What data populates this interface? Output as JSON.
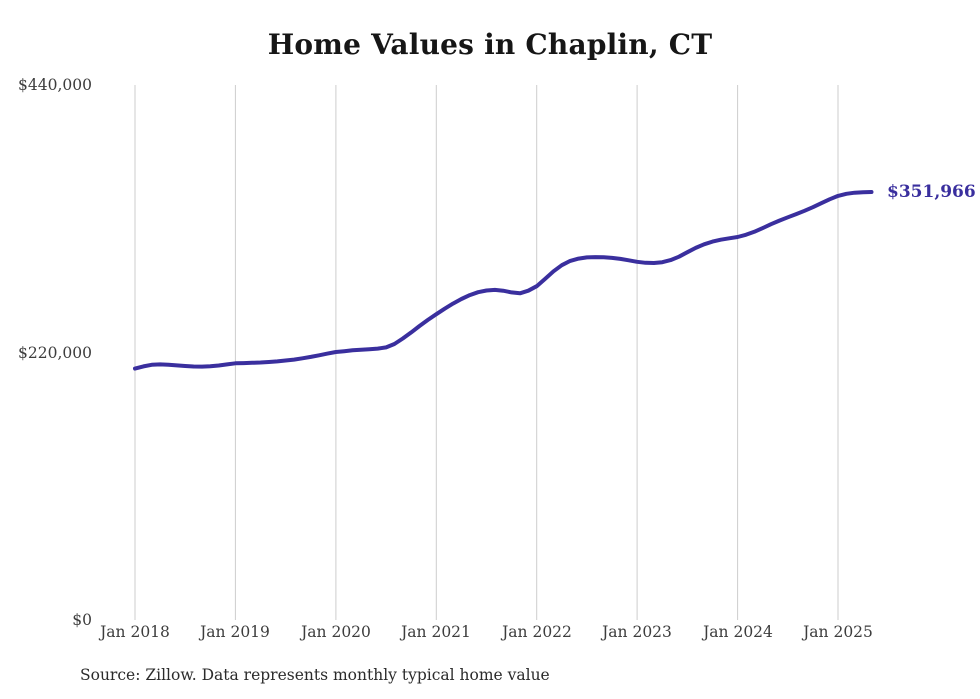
{
  "title": "Home Values in Chaplin, CT",
  "footer": {
    "source_note": "Source: Zillow. Data represents monthly typical home value"
  },
  "colors": {
    "background": "#ffffff",
    "line": "#3a2f9e",
    "end_label": "#3a2f9e",
    "grid": "#cdcdcd",
    "title_text": "#161616",
    "axis_text": "#3d3d3d",
    "source_text": "#2b2b2b"
  },
  "chart_data": {
    "type": "line",
    "title": "Home Values in Chaplin, CT",
    "xlabel": "",
    "ylabel": "",
    "ylim": [
      0,
      440000
    ],
    "grid": "vertical-only",
    "legend": "none",
    "end_annotation": "$351,966",
    "y_ticks": [
      {
        "label": "$440,000",
        "value": 440000
      },
      {
        "label": "$220,000",
        "value": 220000
      },
      {
        "label": "$0",
        "value": 0
      }
    ],
    "x_ticks": [
      {
        "label": "Jan 2018",
        "month_index": 0
      },
      {
        "label": "Jan 2019",
        "month_index": 12
      },
      {
        "label": "Jan 2020",
        "month_index": 24
      },
      {
        "label": "Jan 2021",
        "month_index": 36
      },
      {
        "label": "Jan 2022",
        "month_index": 48
      },
      {
        "label": "Jan 2023",
        "month_index": 60
      },
      {
        "label": "Jan 2024",
        "month_index": 72
      },
      {
        "label": "Jan 2025",
        "month_index": 84
      }
    ],
    "series": [
      {
        "name": "Monthly typical home value",
        "unit": "USD",
        "final_value": 351966,
        "months": [
          "2018-01",
          "2018-02",
          "2018-03",
          "2018-04",
          "2018-05",
          "2018-06",
          "2018-07",
          "2018-08",
          "2018-09",
          "2018-10",
          "2018-11",
          "2018-12",
          "2019-01",
          "2019-02",
          "2019-03",
          "2019-04",
          "2019-05",
          "2019-06",
          "2019-07",
          "2019-08",
          "2019-09",
          "2019-10",
          "2019-11",
          "2019-12",
          "2020-01",
          "2020-02",
          "2020-03",
          "2020-04",
          "2020-05",
          "2020-06",
          "2020-07",
          "2020-08",
          "2020-09",
          "2020-10",
          "2020-11",
          "2020-12",
          "2021-01",
          "2021-02",
          "2021-03",
          "2021-04",
          "2021-05",
          "2021-06",
          "2021-07",
          "2021-08",
          "2021-09",
          "2021-10",
          "2021-11",
          "2021-12",
          "2022-01",
          "2022-02",
          "2022-03",
          "2022-04",
          "2022-05",
          "2022-06",
          "2022-07",
          "2022-08",
          "2022-09",
          "2022-10",
          "2022-11",
          "2022-12",
          "2023-01",
          "2023-02",
          "2023-03",
          "2023-04",
          "2023-05",
          "2023-06",
          "2023-07",
          "2023-08",
          "2023-09",
          "2023-10",
          "2023-11",
          "2023-12",
          "2024-01",
          "2024-02",
          "2024-03",
          "2024-04",
          "2024-05",
          "2024-06",
          "2024-07",
          "2024-08",
          "2024-09",
          "2024-10",
          "2024-11",
          "2024-12",
          "2025-01",
          "2025-02",
          "2025-03",
          "2025-04",
          "2025-05"
        ],
        "values": [
          206800,
          208600,
          209900,
          210200,
          209900,
          209400,
          208900,
          208500,
          208400,
          208700,
          209300,
          210200,
          211100,
          211300,
          211500,
          211800,
          212200,
          212700,
          213400,
          214200,
          215200,
          216400,
          217700,
          219100,
          220400,
          221100,
          221800,
          222300,
          222700,
          223200,
          224200,
          227000,
          231500,
          236500,
          241800,
          246800,
          251500,
          256000,
          260200,
          264000,
          267200,
          269600,
          271000,
          271500,
          270800,
          269400,
          268700,
          270800,
          274500,
          280500,
          286800,
          291800,
          295300,
          297200,
          298200,
          298500,
          298300,
          297800,
          297000,
          295800,
          294600,
          293800,
          293600,
          294300,
          296000,
          298800,
          302500,
          306000,
          309000,
          311200,
          312800,
          313900,
          315000,
          316800,
          319300,
          322300,
          325500,
          328500,
          331200,
          333800,
          336500,
          339500,
          342800,
          346000,
          348800,
          350500,
          351400,
          351800,
          351966
        ]
      }
    ]
  }
}
